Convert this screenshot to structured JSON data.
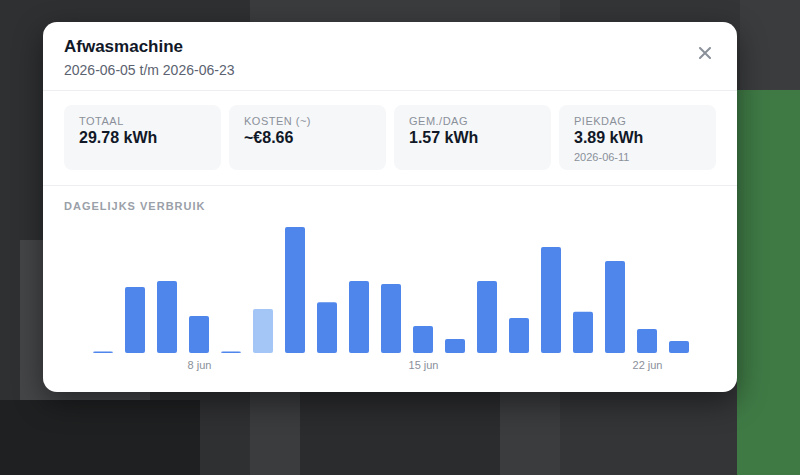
{
  "header": {
    "title": "Afwasmachine",
    "subtitle": "2026-06-05 t/m 2026-06-23"
  },
  "stats": [
    {
      "label": "TOTAAL",
      "value": "29.78 kWh"
    },
    {
      "label": "KOSTEN (~)",
      "value": "~€8.66"
    },
    {
      "label": "GEM./DAG",
      "value": "1.57 kWh"
    },
    {
      "label": "PIEKDAG",
      "value": "3.89 kWh",
      "date": "2026-06-11"
    }
  ],
  "chart_data": {
    "type": "bar",
    "title": "DAGELIJKS VERBRUIK",
    "categories": [
      null,
      null,
      null,
      "8 jun",
      null,
      null,
      null,
      null,
      null,
      null,
      "15 jun",
      null,
      null,
      null,
      null,
      null,
      null,
      "22 jun",
      null
    ],
    "values": [
      0.05,
      2.04,
      2.22,
      1.14,
      0.05,
      1.36,
      3.89,
      1.57,
      2.22,
      2.13,
      0.83,
      0.43,
      2.22,
      1.08,
      3.27,
      1.27,
      2.84,
      0.74,
      0.37
    ],
    "colors": [
      "#4f86ec",
      "#4f86ec",
      "#4f86ec",
      "#4f86ec",
      "#4f86ec",
      "#a4c6f7",
      "#4f86ec",
      "#4f86ec",
      "#4f86ec",
      "#4f86ec",
      "#4f86ec",
      "#4f86ec",
      "#4f86ec",
      "#4f86ec",
      "#4f86ec",
      "#4f86ec",
      "#4f86ec",
      "#4f86ec",
      "#4f86ec"
    ],
    "ylim": [
      0,
      3.89
    ],
    "tick_labels": "x",
    "grid": false
  }
}
